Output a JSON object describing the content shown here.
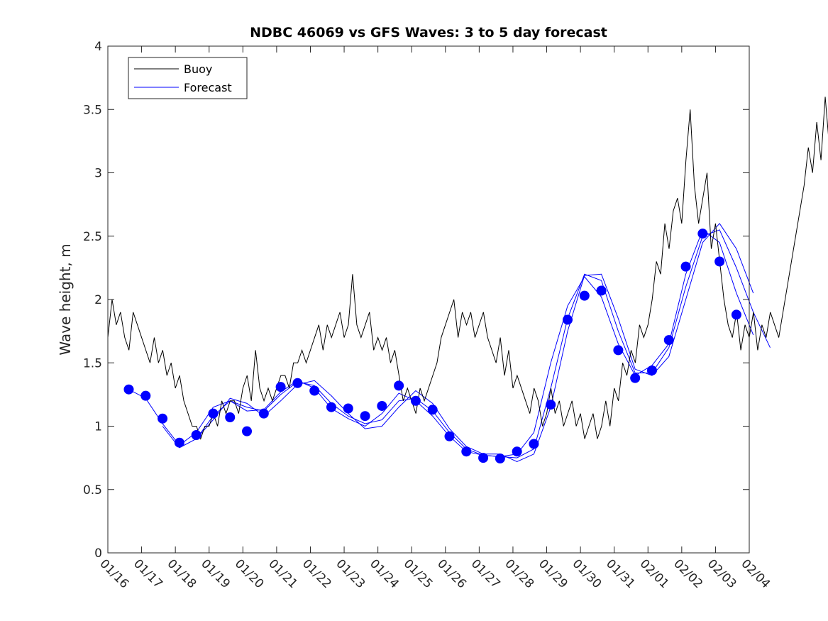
{
  "chart_data": {
    "type": "line",
    "title": "NDBC 46069 vs GFS Waves: 3 to 5 day forecast",
    "xlabel": "",
    "ylabel": "Wave height, m",
    "x_units": "days since 01/16",
    "xlim": [
      0,
      19
    ],
    "ylim": [
      0,
      4
    ],
    "yticks": [
      "0",
      "0.5",
      "1",
      "1.5",
      "2",
      "2.5",
      "3",
      "3.5",
      "4"
    ],
    "xticks": [
      "01/16",
      "01/17",
      "01/18",
      "01/19",
      "01/20",
      "01/21",
      "01/22",
      "01/23",
      "01/24",
      "01/25",
      "01/26",
      "01/27",
      "01/28",
      "01/29",
      "01/30",
      "01/31",
      "02/01",
      "02/02",
      "02/03",
      "02/04"
    ],
    "legend": {
      "position": "top-left",
      "entries": [
        "Buoy",
        "Forecast"
      ]
    },
    "colors": {
      "buoy": "#000000",
      "forecast": "#0000ff"
    },
    "buoy": {
      "x_start": 0,
      "x_step": 0.125,
      "values": [
        1.7,
        2.0,
        1.8,
        1.9,
        1.7,
        1.6,
        1.9,
        1.8,
        1.7,
        1.6,
        1.5,
        1.7,
        1.5,
        1.6,
        1.4,
        1.5,
        1.3,
        1.4,
        1.2,
        1.1,
        1.0,
        1.0,
        0.9,
        1.0,
        1.0,
        1.1,
        1.0,
        1.2,
        1.1,
        1.2,
        1.2,
        1.1,
        1.3,
        1.4,
        1.2,
        1.6,
        1.3,
        1.2,
        1.3,
        1.2,
        1.3,
        1.4,
        1.4,
        1.3,
        1.5,
        1.5,
        1.6,
        1.5,
        1.6,
        1.7,
        1.8,
        1.6,
        1.8,
        1.7,
        1.8,
        1.9,
        1.7,
        1.8,
        2.2,
        1.8,
        1.7,
        1.8,
        1.9,
        1.6,
        1.7,
        1.6,
        1.7,
        1.5,
        1.6,
        1.4,
        1.2,
        1.3,
        1.2,
        1.1,
        1.3,
        1.2,
        1.3,
        1.4,
        1.5,
        1.7,
        1.8,
        1.9,
        2.0,
        1.7,
        1.9,
        1.8,
        1.9,
        1.7,
        1.8,
        1.9,
        1.7,
        1.6,
        1.5,
        1.7,
        1.4,
        1.6,
        1.3,
        1.4,
        1.3,
        1.2,
        1.1,
        1.3,
        1.2,
        1.0,
        1.1,
        1.3,
        1.1,
        1.2,
        1.0,
        1.1,
        1.2,
        1.0,
        1.1,
        0.9,
        1.0,
        1.1,
        0.9,
        1.0,
        1.2,
        1.0,
        1.3,
        1.2,
        1.5,
        1.4,
        1.6,
        1.5,
        1.8,
        1.7,
        1.8,
        2.0,
        2.3,
        2.2,
        2.6,
        2.4,
        2.7,
        2.8,
        2.6,
        3.1,
        3.5,
        2.9,
        2.6,
        2.8,
        3.0,
        2.4,
        2.6,
        2.3,
        2.0,
        1.8,
        1.7,
        1.9,
        1.6,
        1.8,
        1.7,
        1.9,
        1.6,
        1.8,
        1.7,
        1.9,
        1.8,
        1.7,
        1.9,
        2.1,
        2.3,
        2.5,
        2.7,
        2.9,
        3.2,
        3.0,
        3.4,
        3.1,
        3.6,
        3.2,
        3.0,
        3.8,
        2.8,
        3.3,
        2.9,
        3.5
      ]
    },
    "forecast_dots": {
      "x": [
        0.62,
        1.12,
        1.62,
        2.12,
        2.62,
        3.12,
        3.62,
        4.12,
        4.62,
        5.12,
        5.62,
        6.12,
        6.62,
        7.12,
        7.62,
        8.12,
        8.62,
        9.12,
        9.62,
        10.12,
        10.62,
        11.12,
        11.62,
        12.12,
        12.62,
        13.12,
        13.62,
        14.12,
        14.62,
        15.12,
        15.62,
        16.12,
        16.62,
        17.12,
        17.62,
        18.12,
        18.62
      ],
      "y": [
        1.29,
        1.24,
        1.06,
        0.87,
        0.93,
        1.1,
        1.07,
        0.96,
        1.1,
        1.31,
        1.34,
        1.28,
        1.15,
        1.14,
        1.08,
        1.16,
        1.32,
        1.2,
        1.13,
        0.92,
        0.8,
        0.75,
        0.745,
        0.8,
        0.86,
        1.17,
        1.84,
        2.03,
        2.07,
        1.6,
        1.38,
        1.44,
        1.68,
        2.26,
        2.52,
        2.3,
        1.88
      ]
    },
    "forecast_runs": [
      {
        "x_start": 0.62,
        "x_step": 0.5,
        "values": [
          1.29,
          1.22,
          1.02,
          0.85,
          0.95,
          1.15,
          1.2,
          1.12,
          1.13,
          1.27,
          1.36,
          1.3,
          1.14,
          1.06,
          1.0,
          1.1,
          1.26,
          1.2,
          1.08,
          0.92,
          0.8,
          0.77,
          0.76,
          0.78,
          0.95,
          1.5,
          1.95,
          2.18,
          2.02,
          1.65,
          1.4,
          1.48,
          1.65,
          2.2,
          2.55,
          2.45,
          2.05,
          1.72
        ]
      },
      {
        "x_start": 1.62,
        "x_step": 0.5,
        "values": [
          1.0,
          0.83,
          0.9,
          1.08,
          1.2,
          1.15,
          1.12,
          1.25,
          1.35,
          1.32,
          1.18,
          1.08,
          1.02,
          1.05,
          1.2,
          1.22,
          1.12,
          0.95,
          0.82,
          0.77,
          0.76,
          0.75,
          0.82,
          1.3,
          1.85,
          2.2,
          2.15,
          1.75,
          1.42,
          1.42,
          1.62,
          2.1,
          2.5,
          2.55,
          2.25,
          1.9,
          1.62
        ]
      },
      {
        "x_start": 2.62,
        "x_step": 0.5,
        "values": [
          0.9,
          1.05,
          1.22,
          1.18,
          1.08,
          1.2,
          1.33,
          1.36,
          1.24,
          1.1,
          0.98,
          1.0,
          1.15,
          1.28,
          1.18,
          0.98,
          0.84,
          0.78,
          0.78,
          0.72,
          0.78,
          1.15,
          1.75,
          2.19,
          2.2,
          1.85,
          1.45,
          1.4,
          1.55,
          2.0,
          2.45,
          2.6,
          2.4,
          2.05
        ]
      }
    ]
  }
}
